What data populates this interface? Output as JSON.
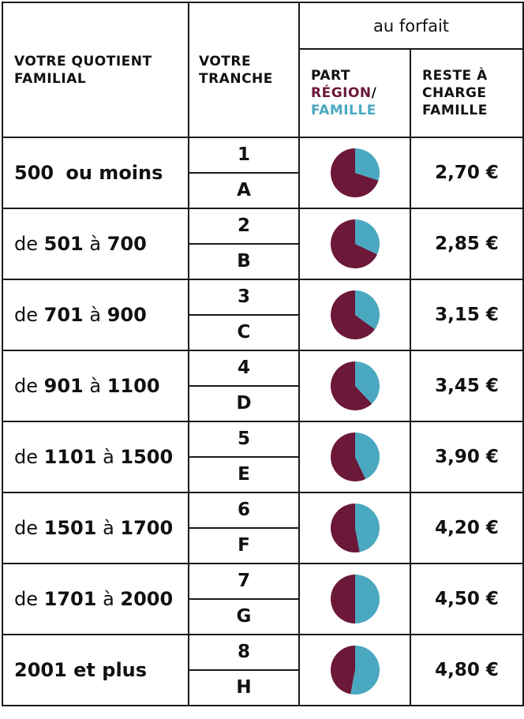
{
  "headers": {
    "quotient": "VOTRE QUOTIENT FAMILIAL",
    "tranche_line1": "VOTRE",
    "tranche_line2": "TRANCHE",
    "forfait": "au forfait",
    "part_word": "PART",
    "region_word": "RÉGION",
    "slash": "/",
    "famille_word": "FAMILLE",
    "reste": "RESTE À CHARGE FAMILLE"
  },
  "colors": {
    "region": "#6b1839",
    "famille": "#4aa8c0",
    "border": "#1a1a1a"
  },
  "rows": [
    {
      "qf": [
        {
          "t": "500",
          "w": "b"
        },
        {
          "t": "  ",
          "w": "n"
        },
        {
          "t": "ou moins",
          "w": "b"
        }
      ],
      "tranche_num": "1",
      "tranche_letter": "A",
      "family_share": 0.3,
      "reste": "2,70 €"
    },
    {
      "qf": [
        {
          "t": "de ",
          "w": "n"
        },
        {
          "t": "501",
          "w": "b"
        },
        {
          "t": " à ",
          "w": "n"
        },
        {
          "t": "700",
          "w": "b"
        }
      ],
      "tranche_num": "2",
      "tranche_letter": "B",
      "family_share": 0.32,
      "reste": "2,85 €"
    },
    {
      "qf": [
        {
          "t": "de ",
          "w": "n"
        },
        {
          "t": "701",
          "w": "b"
        },
        {
          "t": " à ",
          "w": "n"
        },
        {
          "t": "900",
          "w": "b"
        }
      ],
      "tranche_num": "3",
      "tranche_letter": "C",
      "family_share": 0.35,
      "reste": "3,15 €"
    },
    {
      "qf": [
        {
          "t": "de ",
          "w": "n"
        },
        {
          "t": "901",
          "w": "b"
        },
        {
          "t": " à ",
          "w": "n"
        },
        {
          "t": "1100",
          "w": "b"
        }
      ],
      "tranche_num": "4",
      "tranche_letter": "D",
      "family_share": 0.38,
      "reste": "3,45 €"
    },
    {
      "qf": [
        {
          "t": "de ",
          "w": "n"
        },
        {
          "t": "1101",
          "w": "b"
        },
        {
          "t": " à ",
          "w": "n"
        },
        {
          "t": "1500",
          "w": "b"
        }
      ],
      "tranche_num": "5",
      "tranche_letter": "E",
      "family_share": 0.43,
      "reste": "3,90 €"
    },
    {
      "qf": [
        {
          "t": "de ",
          "w": "n"
        },
        {
          "t": "1501",
          "w": "b"
        },
        {
          "t": " à ",
          "w": "n"
        },
        {
          "t": "1700",
          "w": "b"
        }
      ],
      "tranche_num": "6",
      "tranche_letter": "F",
      "family_share": 0.47,
      "reste": "4,20 €"
    },
    {
      "qf": [
        {
          "t": "de ",
          "w": "n"
        },
        {
          "t": "1701",
          "w": "b"
        },
        {
          "t": " à ",
          "w": "n"
        },
        {
          "t": "2000",
          "w": "b"
        }
      ],
      "tranche_num": "7",
      "tranche_letter": "G",
      "family_share": 0.5,
      "reste": "4,50 €"
    },
    {
      "qf": [
        {
          "t": "2001",
          "w": "b"
        },
        {
          "t": " et plus",
          "w": "b"
        }
      ],
      "tranche_num": "8",
      "tranche_letter": "H",
      "family_share": 0.53,
      "reste": "4,80 €"
    }
  ]
}
